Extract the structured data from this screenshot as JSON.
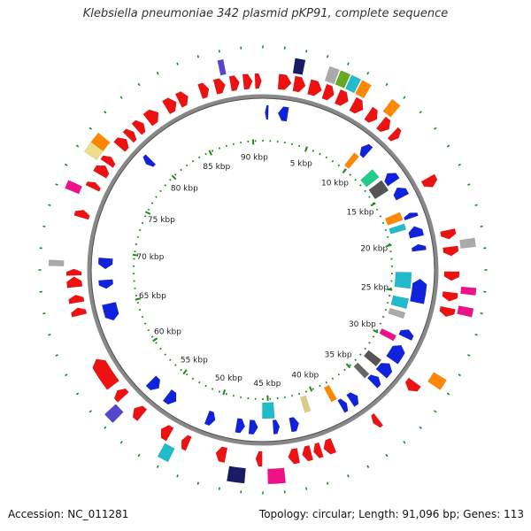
{
  "title": "Klebsiella pneumoniae 342 plasmid pKP91, complete sequence",
  "footer": {
    "accession": "Accession: NC_011281",
    "summary": "Topology: circular; Length: 91,096 bp; Genes: 113"
  },
  "plasmid": {
    "length_bp": 91096,
    "scale_labels": [
      "5 kbp",
      "10 kbp",
      "15 kbp",
      "20 kbp",
      "25 kbp",
      "30 kbp",
      "35 kbp",
      "40 kbp",
      "45 kbp",
      "50 kbp",
      "55 kbp",
      "60 kbp",
      "65 kbp",
      "70 kbp",
      "75 kbp",
      "80 kbp",
      "85 kbp",
      "90 kbp"
    ],
    "scale_positions_kbp": [
      5,
      10,
      15,
      20,
      25,
      30,
      35,
      40,
      45,
      50,
      55,
      60,
      65,
      70,
      75,
      80,
      85,
      90
    ]
  },
  "colors": {
    "forward_cds": "#ee1111",
    "reverse_cds": "#1122dd",
    "backbone": "#888888",
    "dots": "#1a8a1a"
  },
  "features": {
    "outer_forward": [
      [
        1.2,
        2.2
      ],
      [
        2.4,
        3.3
      ],
      [
        3.6,
        4.6
      ],
      [
        4.8,
        5.6
      ],
      [
        5.9,
        6.8
      ],
      [
        7.2,
        8.1
      ],
      [
        8.6,
        9.4
      ],
      [
        9.8,
        10.6
      ],
      [
        11.0,
        11.6
      ],
      [
        15.4,
        16.2
      ],
      [
        19.7,
        20.4
      ],
      [
        21.0,
        21.7
      ],
      [
        22.9,
        23.6
      ],
      [
        24.5,
        25.2
      ],
      [
        25.7,
        26.4
      ],
      [
        32.0,
        32.8
      ],
      [
        36.0,
        36.5
      ],
      [
        40.0,
        40.8
      ],
      [
        41.0,
        41.6
      ],
      [
        41.8,
        42.5
      ],
      [
        42.8,
        43.6
      ],
      [
        45.6,
        46.1
      ],
      [
        48.4,
        49.2
      ],
      [
        51.4,
        52.0
      ],
      [
        53.0,
        53.8
      ],
      [
        55.6,
        56.4
      ],
      [
        57.6,
        58.3
      ],
      [
        58.8,
        61.2
      ],
      [
        64.8,
        65.4
      ],
      [
        65.8,
        66.4
      ],
      [
        67.0,
        67.8
      ],
      [
        67.9,
        68.4
      ],
      [
        72.4,
        73.0
      ],
      [
        74.8,
        75.3
      ],
      [
        76.0,
        76.8
      ],
      [
        77.0,
        77.6
      ],
      [
        78.6,
        79.4
      ],
      [
        79.6,
        80.2
      ],
      [
        80.5,
        81.2
      ],
      [
        81.6,
        82.6
      ],
      [
        83.3,
        84.2
      ],
      [
        84.4,
        85.2
      ],
      [
        86.2,
        86.9
      ],
      [
        87.4,
        88.2
      ],
      [
        88.6,
        89.3
      ],
      [
        89.6,
        90.3
      ],
      [
        90.5,
        91.0
      ]
    ],
    "outer_colored": [
      {
        "kbp": [
          2.2,
          2.9
        ],
        "color": "#1a1a66"
      },
      {
        "kbp": [
          4.6,
          5.3
        ],
        "color": "#aaaaaa"
      },
      {
        "kbp": [
          5.4,
          6.1
        ],
        "color": "#66aa22"
      },
      {
        "kbp": [
          6.2,
          6.9
        ],
        "color": "#22bbcc"
      },
      {
        "kbp": [
          7.0,
          7.7
        ],
        "color": "#ff8800"
      },
      {
        "kbp": [
          9.4,
          10.1
        ],
        "color": "#ff8800"
      },
      {
        "kbp": [
          20.6,
          21.2
        ],
        "color": "#aaaaaa"
      },
      {
        "kbp": [
          24.0,
          24.5
        ],
        "color": "#ee1188"
      },
      {
        "kbp": [
          25.4,
          26.0
        ],
        "color": "#ee1188"
      },
      {
        "kbp": [
          30.6,
          31.4
        ],
        "color": "#ff8800"
      },
      {
        "kbp": [
          44.0,
          45.2
        ],
        "color": "#ee1188"
      },
      {
        "kbp": [
          46.8,
          48.0
        ],
        "color": "#1a1a66"
      },
      {
        "kbp": [
          52.2,
          53.0
        ],
        "color": "#22bbcc"
      },
      {
        "kbp": [
          56.8,
          57.6
        ],
        "color": "#5544cc"
      },
      {
        "kbp": [
          68.6,
          69.0
        ],
        "color": "#aaaaaa"
      },
      {
        "kbp": [
          74.0,
          74.6
        ],
        "color": "#ee1188"
      },
      {
        "kbp": [
          76.8,
          78.0
        ],
        "color": "#eedd88"
      },
      {
        "kbp": [
          77.6,
          78.4
        ],
        "color": "#ff8800"
      },
      {
        "kbp": [
          88.0,
          88.4
        ],
        "color": "#5544cc"
      }
    ],
    "inner_reverse": [
      [
        0.2,
        0.5
      ],
      [
        1.4,
        2.3
      ],
      [
        9.8,
        10.6
      ],
      [
        13.2,
        14.2
      ],
      [
        14.8,
        15.8
      ],
      [
        17.4,
        17.9
      ],
      [
        18.7,
        19.7
      ],
      [
        20.4,
        21.0
      ],
      [
        23.6,
        25.8
      ],
      [
        28.4,
        29.2
      ],
      [
        30.0,
        31.6
      ],
      [
        32.0,
        33.2
      ],
      [
        33.6,
        34.4
      ],
      [
        36.2,
        37.0
      ],
      [
        37.4,
        38.0
      ],
      [
        42.2,
        43.0
      ],
      [
        44.0,
        44.6
      ],
      [
        46.0,
        46.8
      ],
      [
        47.2,
        48.0
      ],
      [
        50.0,
        50.8
      ],
      [
        54.0,
        55.0
      ],
      [
        56.0,
        57.0
      ],
      [
        63.6,
        65.2
      ],
      [
        66.6,
        67.4
      ],
      [
        68.4,
        69.4
      ],
      [
        79.0,
        79.6
      ]
    ],
    "inner_colored": [
      {
        "kbp": [
          9.6,
          10.2
        ],
        "color": "#ff8800"
      },
      {
        "kbp": [
          12.0,
          13.0
        ],
        "color": "#22cc88"
      },
      {
        "kbp": [
          13.4,
          14.6
        ],
        "color": "#555555"
      },
      {
        "kbp": [
          17.0,
          17.8
        ],
        "color": "#ff8800"
      },
      {
        "kbp": [
          18.2,
          18.8
        ],
        "color": "#22bbcc"
      },
      {
        "kbp": [
          23.0,
          24.6
        ],
        "color": "#22bbcc"
      },
      {
        "kbp": [
          25.6,
          26.6
        ],
        "color": "#22bbcc"
      },
      {
        "kbp": [
          27.0,
          27.6
        ],
        "color": "#aaaaaa"
      },
      {
        "kbp": [
          29.4,
          30.0
        ],
        "color": "#ee1188"
      },
      {
        "kbp": [
          32.2,
          33.0
        ],
        "color": "#555555"
      },
      {
        "kbp": [
          34.0,
          34.6
        ],
        "color": "#666666"
      },
      {
        "kbp": [
          38.0,
          38.6
        ],
        "color": "#ff8800"
      },
      {
        "kbp": [
          40.8,
          41.4
        ],
        "color": "#ddcc88"
      },
      {
        "kbp": [
          44.4,
          45.6
        ],
        "color": "#22bbcc"
      }
    ]
  }
}
